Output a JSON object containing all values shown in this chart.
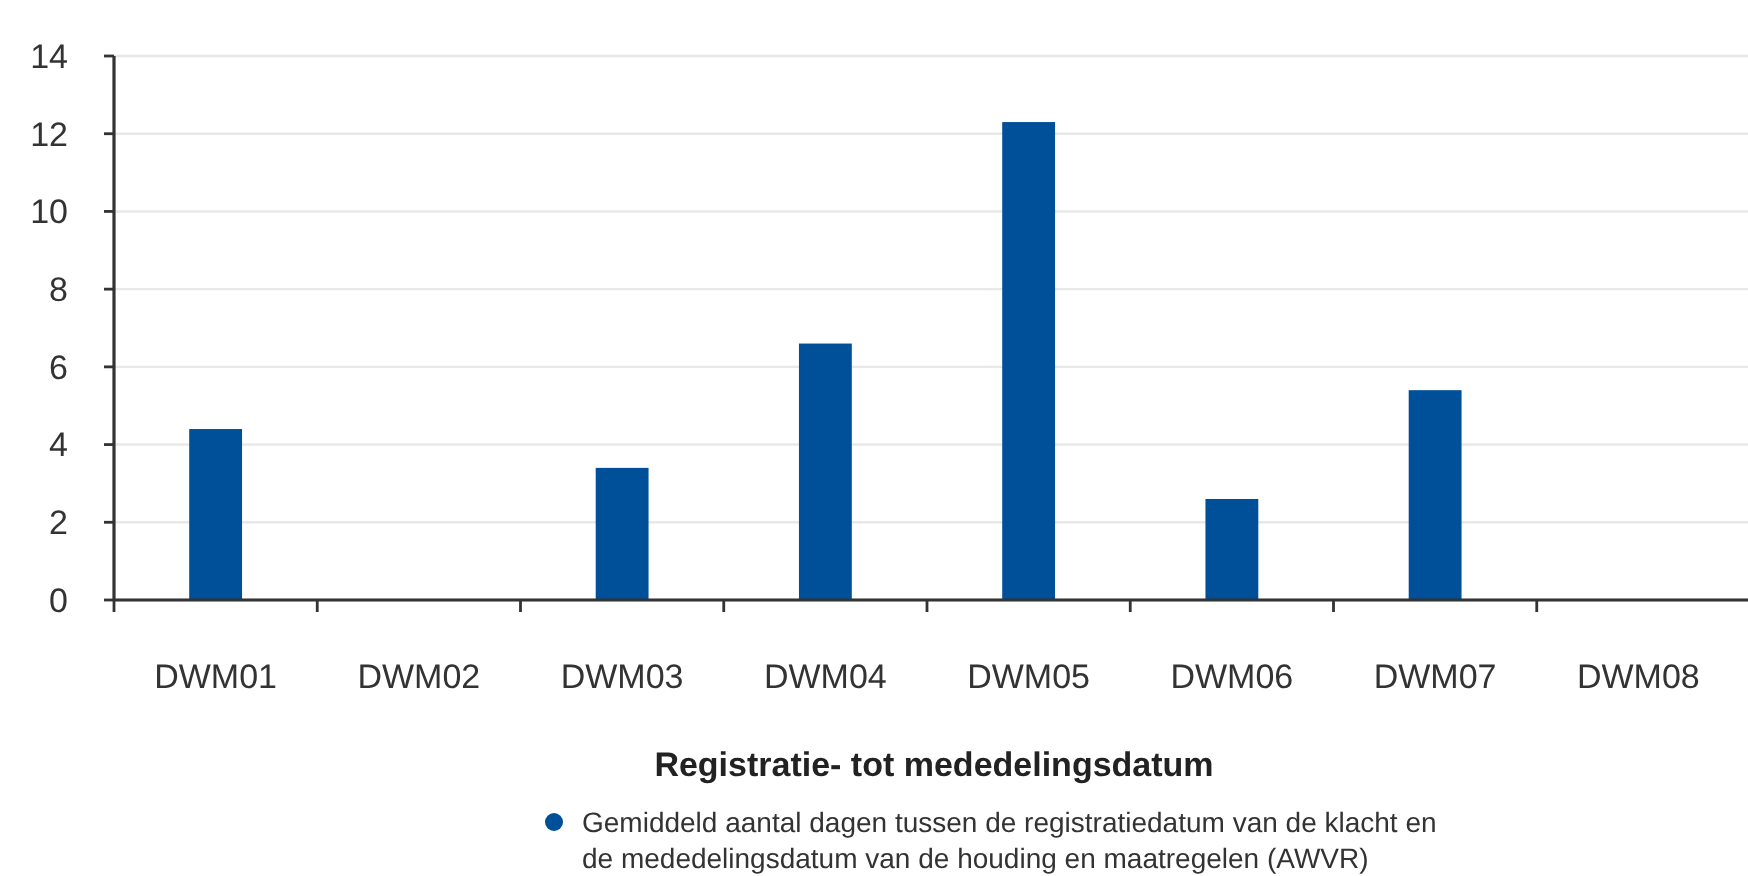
{
  "chart_data": {
    "type": "bar",
    "title": "Registratie- tot mededelingsdatum",
    "categories": [
      "DWM01",
      "DWM02",
      "DWM03",
      "DWM04",
      "DWM05",
      "DWM06",
      "DWM07",
      "DWM08"
    ],
    "series": [
      {
        "name": "Gemiddeld aantal dagen tussen de registratiedatum van de klacht en de mededelingsdatum van de houding en maatregelen (AWVR)",
        "color": "#004f99",
        "values": [
          4.4,
          null,
          3.4,
          6.6,
          12.3,
          2.6,
          5.4,
          null
        ]
      }
    ],
    "ylim": [
      0,
      14
    ],
    "yticks": [
      0,
      2,
      4,
      6,
      8,
      10,
      12,
      14
    ],
    "grid": "y",
    "legend": "bottom"
  }
}
